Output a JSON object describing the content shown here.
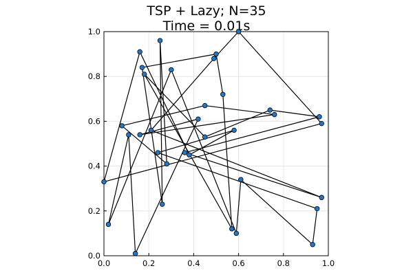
{
  "chart_data": {
    "type": "scatter",
    "title": "TSP + Lazy; N=35",
    "subtitle": "Time = 0.01s",
    "xlabel": "",
    "ylabel": "",
    "xlim": [
      0,
      1
    ],
    "ylim": [
      0,
      1
    ],
    "xticks": [
      {
        "value": 0.0,
        "label": "0.0"
      },
      {
        "value": 0.2,
        "label": "0.2"
      },
      {
        "value": 0.4,
        "label": "0.4"
      },
      {
        "value": 0.6,
        "label": "0.6"
      },
      {
        "value": 0.8,
        "label": "0.8"
      },
      {
        "value": 1.0,
        "label": "1.0"
      }
    ],
    "yticks": [
      {
        "value": 0.0,
        "label": "0.0"
      },
      {
        "value": 0.2,
        "label": "0.2"
      },
      {
        "value": 0.4,
        "label": "0.4"
      },
      {
        "value": 0.6,
        "label": "0.6"
      },
      {
        "value": 0.8,
        "label": "0.8"
      },
      {
        "value": 1.0,
        "label": "1.0"
      }
    ],
    "grid": true,
    "legend": "none",
    "point_color": "#1f78c8",
    "line_color": "#000000",
    "points": [
      {
        "x": 0.6,
        "y": 1.0
      },
      {
        "x": 0.16,
        "y": 0.91
      },
      {
        "x": 0.25,
        "y": 0.96
      },
      {
        "x": 0.5,
        "y": 0.9
      },
      {
        "x": 0.49,
        "y": 0.88
      },
      {
        "x": 0.17,
        "y": 0.84
      },
      {
        "x": 0.3,
        "y": 0.83
      },
      {
        "x": 0.18,
        "y": 0.81
      },
      {
        "x": 0.53,
        "y": 0.72
      },
      {
        "x": 0.45,
        "y": 0.67
      },
      {
        "x": 0.74,
        "y": 0.65
      },
      {
        "x": 0.76,
        "y": 0.63
      },
      {
        "x": 0.96,
        "y": 0.62
      },
      {
        "x": 0.42,
        "y": 0.61
      },
      {
        "x": 0.97,
        "y": 0.59
      },
      {
        "x": 0.08,
        "y": 0.58
      },
      {
        "x": 0.58,
        "y": 0.56
      },
      {
        "x": 0.21,
        "y": 0.56
      },
      {
        "x": 0.11,
        "y": 0.54
      },
      {
        "x": 0.16,
        "y": 0.54
      },
      {
        "x": 0.45,
        "y": 0.53
      },
      {
        "x": 0.36,
        "y": 0.46
      },
      {
        "x": 0.24,
        "y": 0.46
      },
      {
        "x": 0.38,
        "y": 0.45
      },
      {
        "x": 0.28,
        "y": 0.41
      },
      {
        "x": 0.0,
        "y": 0.33
      },
      {
        "x": 0.61,
        "y": 0.34
      },
      {
        "x": 0.97,
        "y": 0.26
      },
      {
        "x": 0.26,
        "y": 0.23
      },
      {
        "x": 0.95,
        "y": 0.21
      },
      {
        "x": 0.02,
        "y": 0.14
      },
      {
        "x": 0.57,
        "y": 0.12
      },
      {
        "x": 0.59,
        "y": 0.1
      },
      {
        "x": 0.93,
        "y": 0.05
      },
      {
        "x": 0.14,
        "y": 0.01
      }
    ],
    "tour_order": [
      0,
      4,
      17,
      27,
      21,
      12,
      10,
      20,
      7,
      31,
      8,
      3,
      5,
      28,
      2,
      24,
      15,
      9,
      11,
      19,
      13,
      34,
      18,
      30,
      6,
      32,
      26,
      33,
      29,
      22,
      16,
      23,
      1,
      25,
      14,
      0
    ]
  }
}
